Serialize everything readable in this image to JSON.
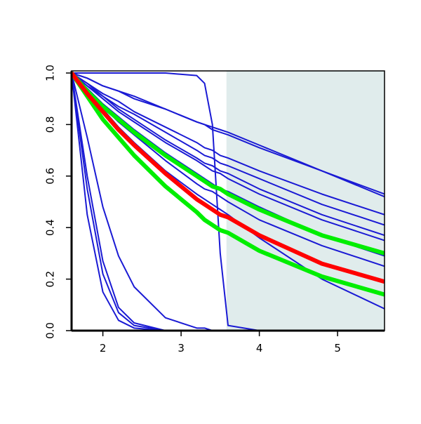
{
  "chart_data": {
    "type": "line",
    "x": [
      1.6,
      1.8,
      2.0,
      2.2,
      2.4,
      2.8,
      3.2,
      3.3,
      3.4,
      3.5,
      3.6,
      4.0,
      4.8,
      5.6
    ],
    "xlim": [
      1.6,
      5.6
    ],
    "ylim": [
      0,
      1
    ],
    "xticks": [
      2,
      3,
      4,
      5
    ],
    "yticks": [
      {
        "value": 0,
        "label": "0.0"
      },
      0.2,
      0.4,
      0.6,
      0.8,
      {
        "value": 1,
        "label": "1.0"
      }
    ],
    "shade_x": [
      3.58,
      5.6
    ],
    "shade_color": "#e0ecec",
    "series": [
      {
        "color": "#1a1ad4",
        "values": [
          1,
          0.98,
          0.95,
          0.93,
          0.91,
          0.86,
          0.81,
          0.8,
          0.79,
          0.78,
          0.77,
          0.72,
          0.62,
          0.53
        ]
      },
      {
        "color": "#1a1ad4",
        "values": [
          1,
          0.98,
          0.95,
          0.93,
          0.9,
          0.86,
          0.81,
          0.8,
          0.78,
          0.77,
          0.76,
          0.71,
          0.62,
          0.52
        ]
      },
      {
        "color": "#1a1ad4",
        "values": [
          1,
          0.96,
          0.92,
          0.89,
          0.85,
          0.79,
          0.73,
          0.71,
          0.7,
          0.68,
          0.67,
          0.62,
          0.53,
          0.45
        ]
      },
      {
        "color": "#1a1ad4",
        "values": [
          1,
          0.96,
          0.91,
          0.87,
          0.84,
          0.77,
          0.7,
          0.68,
          0.67,
          0.65,
          0.64,
          0.59,
          0.49,
          0.41
        ]
      },
      {
        "color": "#1a1ad4",
        "values": [
          1,
          0.95,
          0.91,
          0.86,
          0.82,
          0.74,
          0.67,
          0.65,
          0.64,
          0.62,
          0.61,
          0.55,
          0.45,
          0.37
        ]
      },
      {
        "color": "#1a1ad4",
        "values": [
          1,
          0.95,
          0.9,
          0.85,
          0.81,
          0.73,
          0.66,
          0.64,
          0.62,
          0.61,
          0.59,
          0.53,
          0.43,
          0.35
        ]
      },
      {
        "color": "#1a1ad4",
        "values": [
          1,
          0.94,
          0.88,
          0.83,
          0.78,
          0.69,
          0.61,
          0.59,
          0.57,
          0.55,
          0.54,
          0.48,
          0.37,
          0.29
        ]
      },
      {
        "color": "#1a1ad4",
        "values": [
          1,
          0.93,
          0.87,
          0.81,
          0.76,
          0.66,
          0.57,
          0.55,
          0.54,
          0.52,
          0.5,
          0.43,
          0.33,
          0.25
        ]
      },
      {
        "color": "#1a1ad4",
        "values": [
          1,
          0.93,
          0.86,
          0.79,
          0.73,
          0.62,
          0.53,
          0.51,
          0.49,
          0.47,
          0.45,
          0.36,
          0.2,
          0.085
        ]
      },
      {
        "color": "#1a1ad4",
        "values": [
          1,
          0.45,
          0.15,
          0.04,
          0.01,
          0,
          0,
          0,
          0,
          0,
          0,
          0,
          0,
          0
        ]
      },
      {
        "color": "#1a1ad4",
        "values": [
          1,
          0.55,
          0.22,
          0.07,
          0.02,
          0,
          0,
          0,
          0,
          0,
          0,
          0,
          0,
          0
        ]
      },
      {
        "color": "#1a1ad4",
        "values": [
          1,
          0.6,
          0.27,
          0.09,
          0.03,
          0,
          0,
          0,
          0,
          0,
          0,
          0,
          0,
          0
        ]
      },
      {
        "color": "#1a1ad4",
        "values": [
          1,
          0.75,
          0.48,
          0.29,
          0.17,
          0.05,
          0.01,
          0.01,
          0,
          0,
          0,
          0,
          0,
          0
        ]
      },
      {
        "color": "#1a1ad4",
        "values": [
          1,
          1,
          1,
          1,
          1,
          1,
          0.99,
          0.96,
          0.8,
          0.3,
          0.02,
          0,
          0,
          0
        ]
      },
      {
        "color": "#00ee00",
        "width": 6,
        "values": [
          1,
          0.93,
          0.87,
          0.82,
          0.77,
          0.68,
          0.6,
          0.58,
          0.56,
          0.55,
          0.53,
          0.47,
          0.37,
          0.3
        ]
      },
      {
        "color": "#00ee00",
        "width": 6,
        "values": [
          1,
          0.91,
          0.82,
          0.75,
          0.68,
          0.56,
          0.46,
          0.43,
          0.41,
          0.39,
          0.38,
          0.31,
          0.21,
          0.14
        ]
      },
      {
        "color": "#ff0000",
        "width": 6,
        "values": [
          1,
          0.92,
          0.85,
          0.78,
          0.72,
          0.61,
          0.51,
          0.49,
          0.47,
          0.45,
          0.44,
          0.37,
          0.26,
          0.19
        ]
      }
    ]
  }
}
